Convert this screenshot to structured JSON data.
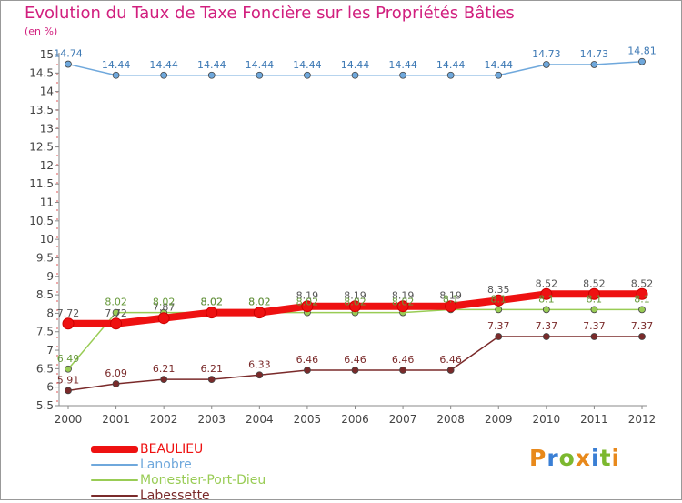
{
  "title": "Evolution du Taux de Taxe Foncière sur les Propriétés Bâties",
  "unit_label": "(en %)",
  "logo": {
    "text": "Proxiti",
    "colors": [
      "#e8891b",
      "#3a7fd5",
      "#7cb82f",
      "#e8891b",
      "#3a7fd5",
      "#7cb82f",
      "#e8891b"
    ]
  },
  "chart_data": {
    "type": "line",
    "x": [
      "2000",
      "2001",
      "2002",
      "2003",
      "2004",
      "2005",
      "2006",
      "2007",
      "2008",
      "2009",
      "2010",
      "2011",
      "2012"
    ],
    "ylim": [
      5.5,
      15
    ],
    "yticks": [
      5.5,
      6,
      6.5,
      7,
      7.5,
      8,
      8.5,
      9,
      9.5,
      10,
      10.5,
      11,
      11.5,
      12,
      12.5,
      13,
      13.5,
      14,
      14.5,
      15
    ],
    "ytick_labels": [
      "5.5",
      "6",
      "6.5",
      "7",
      "7.5",
      "8",
      "8.5",
      "9",
      "9.5",
      "10",
      "10.5",
      "11",
      "11.5",
      "12",
      "12.5",
      "13",
      "13.5",
      "14",
      "14.5",
      "15"
    ],
    "grid": false,
    "legend_position": "bottom-left",
    "series": [
      {
        "name": "BEAULIEU",
        "color": "#ee1111",
        "label_color": "#555555",
        "width": 8,
        "values": [
          7.72,
          7.72,
          7.87,
          8.02,
          8.02,
          8.19,
          8.19,
          8.19,
          8.19,
          8.35,
          8.52,
          8.52,
          8.52
        ],
        "labels": [
          "7.72",
          "7.72",
          "7.87",
          "8.02",
          "8.02",
          "8.19",
          "8.19",
          "8.19",
          "8.19",
          "8.35",
          "8.52",
          "8.52",
          "8.52"
        ]
      },
      {
        "name": "Lanobre",
        "color": "#6fa8dc",
        "label_color": "#3c78b4",
        "width": 1.5,
        "values": [
          14.74,
          14.44,
          14.44,
          14.44,
          14.44,
          14.44,
          14.44,
          14.44,
          14.44,
          14.44,
          14.73,
          14.73,
          14.81
        ],
        "labels": [
          "14.74",
          "14.44",
          "14.44",
          "14.44",
          "14.44",
          "14.44",
          "14.44",
          "14.44",
          "14.44",
          "14.44",
          "14.73",
          "14.73",
          "14.81"
        ]
      },
      {
        "name": "Monestier-Port-Dieu",
        "color": "#99cc55",
        "label_color": "#66993a",
        "width": 1.5,
        "values": [
          6.49,
          8.02,
          8.02,
          8.02,
          8.02,
          8.02,
          8.02,
          8.02,
          8.1,
          8.1,
          8.1,
          8.1,
          8.1
        ],
        "labels": [
          "6.49",
          "8.02",
          "8.02",
          "8.02",
          "8.02",
          "8.02",
          "8.02",
          "8.02",
          "8.1",
          "8.1",
          "8.1",
          "8.1",
          "8.1"
        ]
      },
      {
        "name": "Labessette",
        "color": "#7a2a2a",
        "label_color": "#7a2a2a",
        "width": 1.5,
        "values": [
          5.91,
          6.09,
          6.21,
          6.21,
          6.33,
          6.46,
          6.46,
          6.46,
          6.46,
          7.37,
          7.37,
          7.37,
          7.37
        ],
        "labels": [
          "5.91",
          "6.09",
          "6.21",
          "6.21",
          "6.33",
          "6.46",
          "6.46",
          "6.46",
          "6.46",
          "7.37",
          "7.37",
          "7.37",
          "7.37"
        ]
      }
    ]
  }
}
